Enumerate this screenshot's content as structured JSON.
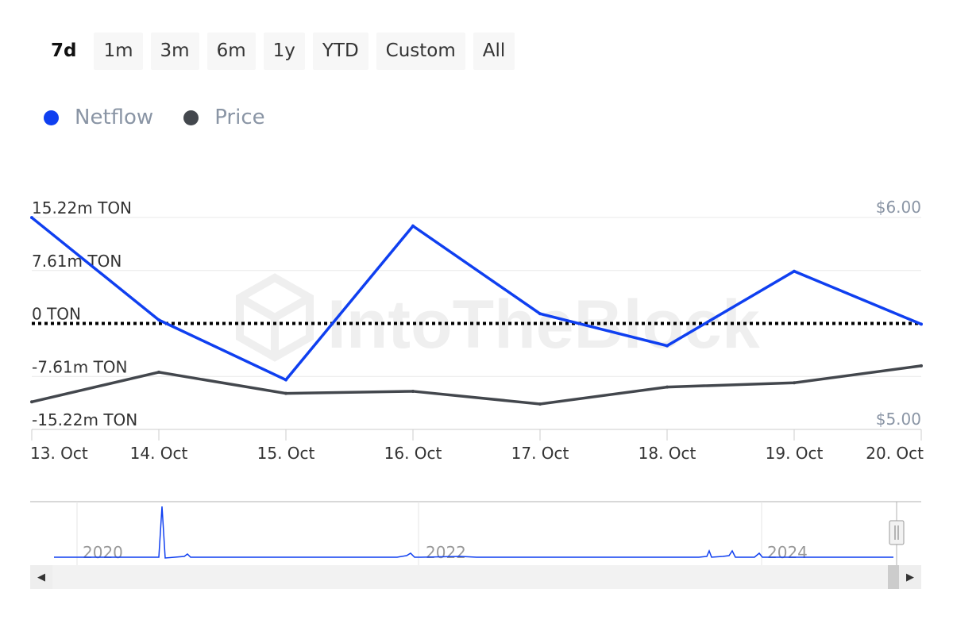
{
  "range_selector": {
    "buttons": [
      {
        "label": "7d",
        "active": true
      },
      {
        "label": "1m",
        "active": false
      },
      {
        "label": "3m",
        "active": false
      },
      {
        "label": "6m",
        "active": false
      },
      {
        "label": "1y",
        "active": false
      },
      {
        "label": "YTD",
        "active": false
      },
      {
        "label": "Custom",
        "active": false
      },
      {
        "label": "All",
        "active": false
      }
    ]
  },
  "legend": [
    {
      "name": "Netflow",
      "color": "#0f3ff0"
    },
    {
      "name": "Price",
      "color": "#43474d"
    }
  ],
  "watermark": "IntoTheBlock",
  "chart_data": {
    "type": "line",
    "title": "",
    "x": [
      "13. Oct",
      "14. Oct",
      "15. Oct",
      "16. Oct",
      "17. Oct",
      "18. Oct",
      "19. Oct",
      "20. Oct"
    ],
    "y_left": {
      "tick_labels": [
        "15.22m TON",
        "7.61m TON",
        "0 TON",
        "-7.61m TON",
        "-15.22m TON"
      ],
      "ticks": [
        15.22,
        7.61,
        0,
        -7.61,
        -15.22
      ],
      "ylim": [
        -15.22,
        15.22
      ],
      "unit": "m TON"
    },
    "y_right": {
      "tick_labels": [
        "$6.00",
        "$5.00"
      ],
      "ylim": [
        5.0,
        6.0
      ]
    },
    "series": [
      {
        "name": "Netflow",
        "axis": "left",
        "color": "#0f3ff0",
        "values": [
          15.2,
          0.5,
          -8.1,
          14.0,
          1.4,
          -3.2,
          7.5,
          -0.1
        ]
      },
      {
        "name": "Price",
        "axis": "right",
        "color": "#43474d",
        "values": [
          5.13,
          5.27,
          5.17,
          5.18,
          5.12,
          5.2,
          5.22,
          5.3
        ]
      }
    ],
    "zero_line": "dotted",
    "grid": true,
    "navigator": {
      "year_labels": [
        "2020",
        "2022",
        "2024"
      ],
      "series_name": "Netflow"
    }
  }
}
